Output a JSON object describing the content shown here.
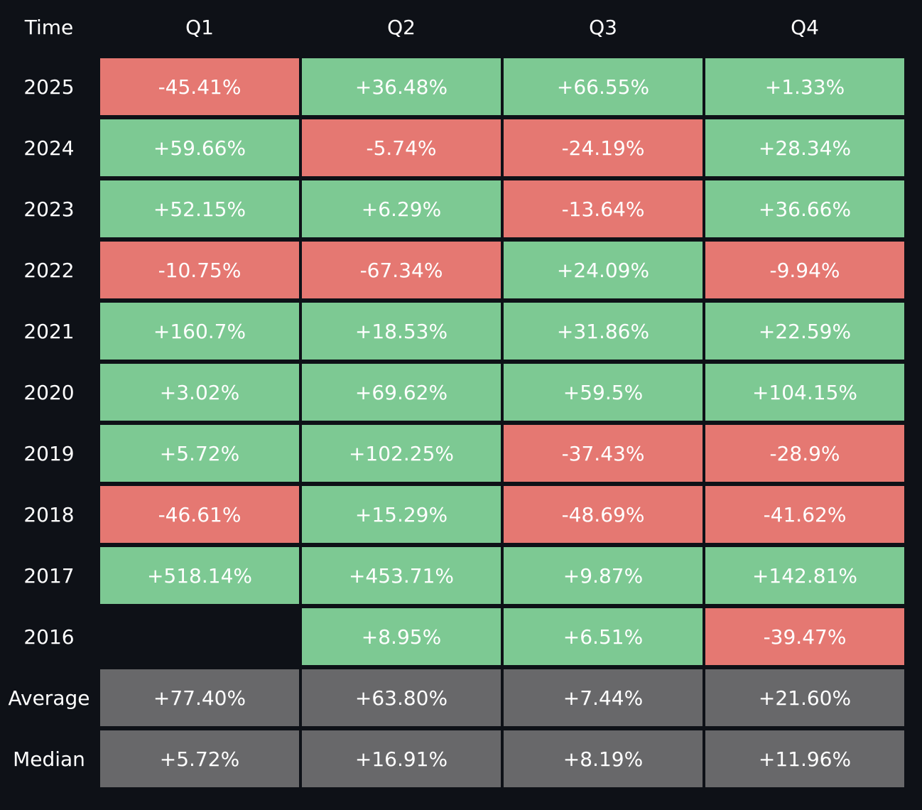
{
  "table": {
    "header": [
      "Time",
      "Q1",
      "Q2",
      "Q3",
      "Q4"
    ],
    "rows": [
      {
        "label": "2025",
        "cells": [
          "-45.41%",
          "+36.48%",
          "+66.55%",
          "+1.33%"
        ]
      },
      {
        "label": "2024",
        "cells": [
          "+59.66%",
          "-5.74%",
          "-24.19%",
          "+28.34%"
        ]
      },
      {
        "label": "2023",
        "cells": [
          "+52.15%",
          "+6.29%",
          "-13.64%",
          "+36.66%"
        ]
      },
      {
        "label": "2022",
        "cells": [
          "-10.75%",
          "-67.34%",
          "+24.09%",
          "-9.94%"
        ]
      },
      {
        "label": "2021",
        "cells": [
          "+160.7%",
          "+18.53%",
          "+31.86%",
          "+22.59%"
        ]
      },
      {
        "label": "2020",
        "cells": [
          "+3.02%",
          "+69.62%",
          "+59.5%",
          "+104.15%"
        ]
      },
      {
        "label": "2019",
        "cells": [
          "+5.72%",
          "+102.25%",
          "-37.43%",
          "-28.9%"
        ]
      },
      {
        "label": "2018",
        "cells": [
          "-46.61%",
          "+15.29%",
          "-48.69%",
          "-41.62%"
        ]
      },
      {
        "label": "2017",
        "cells": [
          "+518.14%",
          "+453.71%",
          "+9.87%",
          "+142.81%"
        ]
      },
      {
        "label": "2016",
        "cells": [
          null,
          "+8.95%",
          "+6.51%",
          "-39.47%"
        ]
      }
    ],
    "summary_rows": [
      {
        "label": "Average",
        "cells": [
          "+77.40%",
          "+63.80%",
          "+7.44%",
          "+21.60%"
        ]
      },
      {
        "label": "Median",
        "cells": [
          "+5.72%",
          "+16.91%",
          "+8.19%",
          "+11.96%"
        ]
      }
    ],
    "colors": {
      "positive": "#7dc993",
      "negative": "#e57872",
      "summary": "#68686a"
    }
  }
}
